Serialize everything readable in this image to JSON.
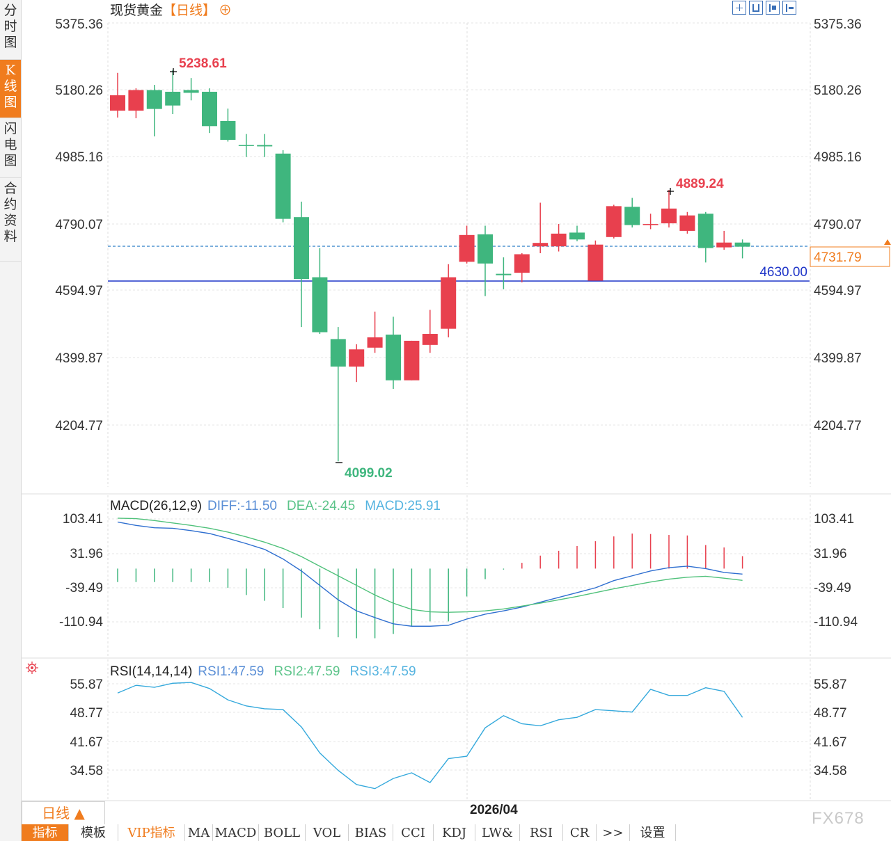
{
  "sidebar": {
    "tabs": [
      {
        "label": "分时图",
        "active": false
      },
      {
        "label": "K线图",
        "active": true
      },
      {
        "label": "闪电图",
        "active": false
      },
      {
        "label": "合约资料",
        "active": false
      }
    ]
  },
  "header": {
    "title": "现货黄金",
    "period_tag": "【日线】",
    "settings_glyph": "⊕"
  },
  "toolbar_icons": [
    "grid-icon",
    "fit-icon",
    "zoom-in-icon",
    "step-forward-icon"
  ],
  "price_panel": {
    "y_ticks": [
      "5375.36",
      "5180.26",
      "4985.16",
      "4790.07",
      "4594.97",
      "4399.87",
      "4204.77"
    ],
    "current_price": "4731.79",
    "support_line": "4630.00",
    "annotations": {
      "high1": "5238.61",
      "low": "4099.02",
      "high2": "4889.24"
    }
  },
  "macd_panel": {
    "title": "MACD(26,12,9)",
    "diff": "DIFF:-11.50",
    "dea": "DEA:-24.45",
    "macd": "MACD:25.91",
    "y_ticks": [
      "103.41",
      "31.96",
      "-39.49",
      "-110.94"
    ]
  },
  "rsi_panel": {
    "title": "RSI(14,14,14)",
    "rsi1": "RSI1:47.59",
    "rsi2": "RSI2:47.59",
    "rsi3": "RSI3:47.59",
    "y_ticks": [
      "55.87",
      "48.77",
      "41.67",
      "34.58"
    ]
  },
  "footer": {
    "period": "日线 ▲",
    "date_label": "2026/04",
    "watermark": "FX678",
    "tabs": [
      {
        "label": "指标",
        "active": true,
        "vip": false
      },
      {
        "label": "模板",
        "active": false,
        "vip": false
      },
      {
        "label": "VIP指标",
        "active": false,
        "vip": true
      },
      {
        "label": "MA",
        "active": false,
        "vip": false
      },
      {
        "label": "MACD",
        "active": false,
        "vip": false
      },
      {
        "label": "BOLL",
        "active": false,
        "vip": false
      },
      {
        "label": "VOL",
        "active": false,
        "vip": false
      },
      {
        "label": "BIAS",
        "active": false,
        "vip": false
      },
      {
        "label": "CCI",
        "active": false,
        "vip": false
      },
      {
        "label": "KDJ",
        "active": false,
        "vip": false
      },
      {
        "label": "LW&",
        "active": false,
        "vip": false
      },
      {
        "label": "RSI",
        "active": false,
        "vip": false
      },
      {
        "label": "CR",
        "active": false,
        "vip": false
      },
      {
        "label": ">>",
        "active": false,
        "vip": false
      },
      {
        "label": "设置",
        "active": false,
        "vip": false
      }
    ]
  },
  "colors": {
    "up": "#e8404e",
    "down": "#3fb67e",
    "diff": "#2f6fd0",
    "dea": "#4fc17a",
    "accent": "#f07c1e",
    "support": "#1f35c8",
    "rsi": "#35a9dc"
  },
  "chart_data": [
    {
      "type": "candlestick",
      "title": "现货黄金",
      "ylim": [
        4140,
        5375.36
      ],
      "grid": true,
      "candles": [
        {
          "open": 5120,
          "close": 5165,
          "high": 5230,
          "low": 5100
        },
        {
          "open": 5120,
          "close": 5180,
          "high": 5185,
          "low": 5098
        },
        {
          "open": 5180,
          "close": 5125,
          "high": 5195,
          "low": 5045
        },
        {
          "open": 5175,
          "close": 5135,
          "high": 5238.61,
          "low": 5110
        },
        {
          "open": 5180,
          "close": 5172,
          "high": 5215,
          "low": 5150
        },
        {
          "open": 5175,
          "close": 5075,
          "high": 5185,
          "low": 5055
        },
        {
          "open": 5090,
          "close": 5035,
          "high": 5126,
          "low": 5030
        },
        {
          "open": 5020,
          "close": 5018,
          "high": 5052,
          "low": 4985
        },
        {
          "open": 5020,
          "close": 5016,
          "high": 5052,
          "low": 4985
        },
        {
          "open": 4995,
          "close": 4805,
          "high": 5005,
          "low": 4795
        },
        {
          "open": 4810,
          "close": 4630,
          "high": 4855,
          "low": 4490
        },
        {
          "open": 4635,
          "close": 4475,
          "high": 4720,
          "low": 4470
        },
        {
          "open": 4455,
          "close": 4375,
          "high": 4490,
          "low": 4099.02
        },
        {
          "open": 4375,
          "close": 4425,
          "high": 4440,
          "low": 4330
        },
        {
          "open": 4430,
          "close": 4460,
          "high": 4535,
          "low": 4415
        },
        {
          "open": 4468,
          "close": 4335,
          "high": 4520,
          "low": 4310
        },
        {
          "open": 4335,
          "close": 4450,
          "high": 4450,
          "low": 4335
        },
        {
          "open": 4438,
          "close": 4470,
          "high": 4540,
          "low": 4415
        },
        {
          "open": 4485,
          "close": 4635,
          "high": 4673,
          "low": 4460
        },
        {
          "open": 4680,
          "close": 4758,
          "high": 4785,
          "low": 4675
        },
        {
          "open": 4760,
          "close": 4675,
          "high": 4785,
          "low": 4580
        },
        {
          "open": 4645,
          "close": 4641,
          "high": 4693,
          "low": 4600
        },
        {
          "open": 4648,
          "close": 4702,
          "high": 4705,
          "low": 4620
        },
        {
          "open": 4725,
          "close": 4735,
          "high": 4852,
          "low": 4705
        },
        {
          "open": 4725,
          "close": 4762,
          "high": 4790,
          "low": 4710
        },
        {
          "open": 4765,
          "close": 4745,
          "high": 4785,
          "low": 4740
        },
        {
          "open": 4625,
          "close": 4730,
          "high": 4742,
          "low": 4625
        },
        {
          "open": 4752,
          "close": 4842,
          "high": 4846,
          "low": 4748
        },
        {
          "open": 4840,
          "close": 4787,
          "high": 4866,
          "low": 4780
        },
        {
          "open": 4787,
          "close": 4790,
          "high": 4820,
          "low": 4775
        },
        {
          "open": 4792,
          "close": 4835,
          "high": 4889.24,
          "low": 4780
        },
        {
          "open": 4770,
          "close": 4815,
          "high": 4825,
          "low": 4762
        },
        {
          "open": 4820,
          "close": 4720,
          "high": 4825,
          "low": 4678
        },
        {
          "open": 4722,
          "close": 4736,
          "high": 4770,
          "low": 4715
        },
        {
          "open": 4736,
          "close": 4724,
          "high": 4745,
          "low": 4690
        }
      ]
    },
    {
      "type": "line",
      "title": "MACD(26,12,9)",
      "ylim": [
        -155,
        120
      ],
      "series": [
        {
          "name": "DIFF",
          "values": [
            97,
            90,
            85,
            84,
            79,
            73,
            63,
            52,
            40,
            20,
            -5,
            -35,
            -65,
            -88,
            -102,
            -115,
            -120,
            -120,
            -118,
            -105,
            -95,
            -88,
            -80,
            -70,
            -60,
            -50,
            -40,
            -25,
            -15,
            -5,
            2,
            5,
            0,
            -8,
            -11.5
          ]
        },
        {
          "name": "DEA",
          "values": [
            105,
            104,
            100,
            95,
            90,
            84,
            76,
            66,
            55,
            42,
            25,
            5,
            -15,
            -35,
            -55,
            -72,
            -85,
            -90,
            -91,
            -90,
            -88,
            -84,
            -78,
            -72,
            -65,
            -58,
            -50,
            -42,
            -35,
            -28,
            -22,
            -18,
            -16,
            -20,
            -24.45
          ]
        },
        {
          "name": "MACD",
          "values": [
            -28,
            -28,
            -28,
            -28,
            -28,
            -28,
            -40,
            -55,
            -67,
            -82,
            -102,
            -126,
            -143,
            -145,
            -145,
            -136,
            -120,
            -110,
            -110,
            -58,
            -22,
            -2,
            12,
            27,
            37,
            47,
            57,
            67,
            73,
            72,
            70,
            69,
            49,
            44,
            25.91
          ]
        }
      ]
    },
    {
      "type": "line",
      "title": "RSI(14,14,14)",
      "ylim": [
        27.5,
        57.5
      ],
      "series": [
        {
          "name": "RSI1",
          "values": [
            53.6,
            55.5,
            55.0,
            56.0,
            56.2,
            54.7,
            51.9,
            50.4,
            49.7,
            49.5,
            45.2,
            38.8,
            34.5,
            31.0,
            30.0,
            32.5,
            33.9,
            31.5,
            37.4,
            38.0,
            45.0,
            48.0,
            46.0,
            45.5,
            47.0,
            47.6,
            49.5,
            49.2,
            48.9,
            54.5,
            53.0,
            53.0,
            54.9,
            54.0,
            47.59
          ]
        },
        {
          "name": "RSI2",
          "values": [
            53.6,
            55.5,
            55.0,
            56.0,
            56.2,
            54.7,
            51.9,
            50.4,
            49.7,
            49.5,
            45.2,
            38.8,
            34.5,
            31.0,
            30.0,
            32.5,
            33.9,
            31.5,
            37.4,
            38.0,
            45.0,
            48.0,
            46.0,
            45.5,
            47.0,
            47.6,
            49.5,
            49.2,
            48.9,
            54.5,
            53.0,
            53.0,
            54.9,
            54.0,
            47.59
          ]
        },
        {
          "name": "RSI3",
          "values": [
            53.6,
            55.5,
            55.0,
            56.0,
            56.2,
            54.7,
            51.9,
            50.4,
            49.7,
            49.5,
            45.2,
            38.8,
            34.5,
            31.0,
            30.0,
            32.5,
            33.9,
            31.5,
            37.4,
            38.0,
            45.0,
            48.0,
            46.0,
            45.5,
            47.0,
            47.6,
            49.5,
            49.2,
            48.9,
            54.5,
            53.0,
            53.0,
            54.9,
            54.0,
            47.59
          ]
        }
      ]
    }
  ]
}
